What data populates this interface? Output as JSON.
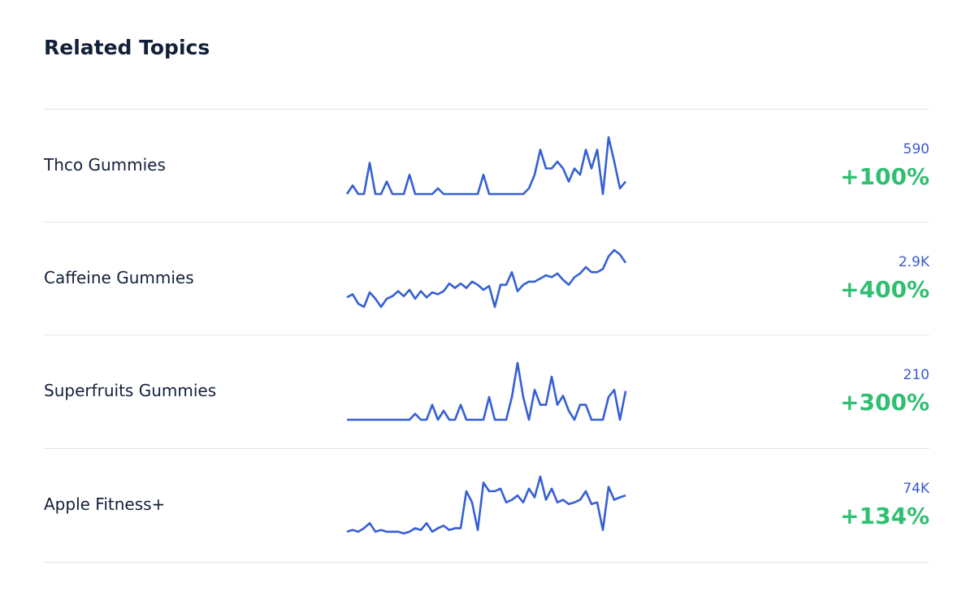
{
  "title": "Related Topics",
  "rows": [
    {
      "name": "Thco Gummies",
      "volume": "590",
      "growth": "+100%",
      "trend": [
        0,
        15,
        0,
        0,
        55,
        0,
        0,
        22,
        0,
        0,
        0,
        34,
        0,
        0,
        0,
        0,
        10,
        0,
        0,
        0,
        0,
        0,
        0,
        0,
        34,
        0,
        0,
        0,
        0,
        0,
        0,
        0,
        10,
        34,
        78,
        45,
        45,
        57,
        45,
        22,
        45,
        34,
        78,
        45,
        78,
        0,
        100,
        57,
        10,
        22
      ]
    },
    {
      "name": "Caffeine Gummies",
      "volume": "2.9K",
      "growth": "+400%",
      "trend": [
        20,
        25,
        10,
        5,
        28,
        18,
        5,
        18,
        22,
        30,
        22,
        32,
        18,
        30,
        20,
        28,
        25,
        30,
        42,
        35,
        42,
        35,
        45,
        40,
        32,
        38,
        5,
        40,
        40,
        60,
        30,
        40,
        45,
        45,
        50,
        55,
        52,
        58,
        48,
        40,
        52,
        58,
        68,
        60,
        60,
        65,
        85,
        95,
        88,
        75
      ]
    },
    {
      "name": "Superfruits Gummies",
      "volume": "210",
      "growth": "+300%",
      "trend": [
        0,
        0,
        0,
        0,
        0,
        0,
        0,
        0,
        0,
        0,
        0,
        0,
        10,
        0,
        0,
        25,
        0,
        15,
        0,
        0,
        25,
        0,
        0,
        0,
        0,
        38,
        0,
        0,
        0,
        38,
        95,
        38,
        0,
        50,
        25,
        25,
        72,
        25,
        40,
        15,
        0,
        25,
        25,
        0,
        0,
        0,
        38,
        50,
        0,
        48
      ]
    },
    {
      "name": "Apple Fitness+",
      "volume": "74K",
      "growth": "+134%",
      "trend": [
        8,
        10,
        8,
        12,
        18,
        8,
        10,
        8,
        8,
        8,
        6,
        8,
        12,
        10,
        18,
        8,
        12,
        15,
        10,
        12,
        12,
        55,
        42,
        10,
        65,
        55,
        55,
        58,
        42,
        45,
        50,
        42,
        58,
        48,
        72,
        45,
        58,
        42,
        45,
        40,
        42,
        45,
        55,
        40,
        42,
        10,
        60,
        45,
        48,
        50
      ]
    }
  ]
}
